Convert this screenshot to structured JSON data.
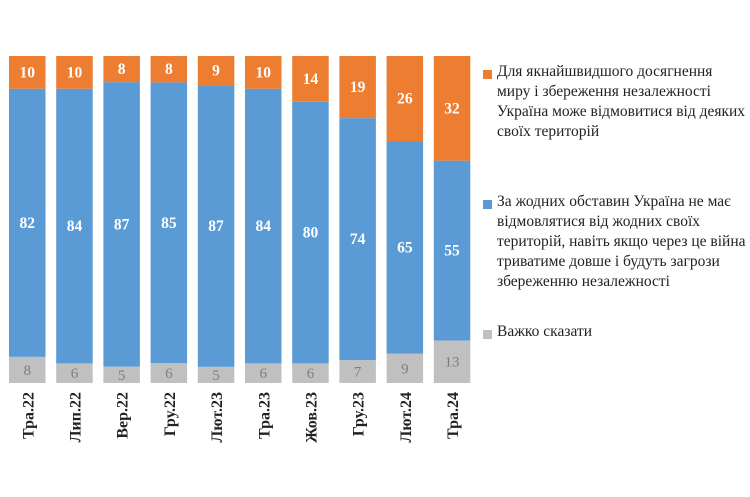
{
  "chart_data": {
    "type": "bar",
    "stacked": true,
    "orientation": "vertical",
    "categories": [
      "Тра.22",
      "Лип.22",
      "Вер.22",
      "Гру.22",
      "Лют.23",
      "Тра.23",
      "Жов.23",
      "Гру.23",
      "Лют.24",
      "Тра.24"
    ],
    "series": [
      {
        "name": "Важко сказати",
        "color": "#c0c0c0",
        "values": [
          8,
          6,
          5,
          6,
          5,
          6,
          6,
          7,
          9,
          13
        ]
      },
      {
        "name": "За жодних обставин Україна не має відмовлятися від жодних своїх територій, навіть якщо через це війна триватиме довше і будуть загрози збереженню незалежності",
        "color": "#5b9bd5",
        "values": [
          82,
          84,
          87,
          85,
          87,
          84,
          80,
          74,
          65,
          55
        ]
      },
      {
        "name": "Для якнайшвидшого досягнення миру і збереження незалежності Україна може відмовитися від деяких своїх територій",
        "color": "#ed7d31",
        "values": [
          10,
          10,
          8,
          8,
          9,
          10,
          14,
          19,
          26,
          32
        ]
      }
    ],
    "legend_position": "right",
    "legend_order": [
      2,
      1,
      0
    ],
    "grid": false
  }
}
